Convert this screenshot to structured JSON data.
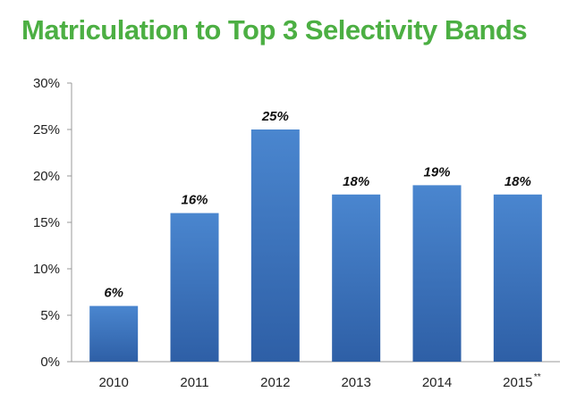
{
  "title": "Matriculation to Top 3 Selectivity Bands",
  "colors": {
    "title": "#4caf43",
    "bar_top": "#4a86cf",
    "bar_bottom": "#2e5fa6",
    "axis": "#999999"
  },
  "chart_data": {
    "type": "bar",
    "categories": [
      "2010",
      "2011",
      "2012",
      "2013",
      "2014",
      "2015"
    ],
    "category_markers": [
      "",
      "",
      "",
      "",
      "",
      "**"
    ],
    "values": [
      6,
      16,
      25,
      18,
      19,
      18
    ],
    "data_labels": [
      "6%",
      "16%",
      "25%",
      "18%",
      "19%",
      "18%"
    ],
    "y_ticks": [
      0,
      5,
      10,
      15,
      20,
      25,
      30
    ],
    "y_tick_labels": [
      "0%",
      "5%",
      "10%",
      "15%",
      "20%",
      "25%",
      "30%"
    ],
    "ylim": [
      0,
      30
    ],
    "xlabel": "",
    "ylabel": "",
    "grid": false,
    "legend": "none"
  }
}
